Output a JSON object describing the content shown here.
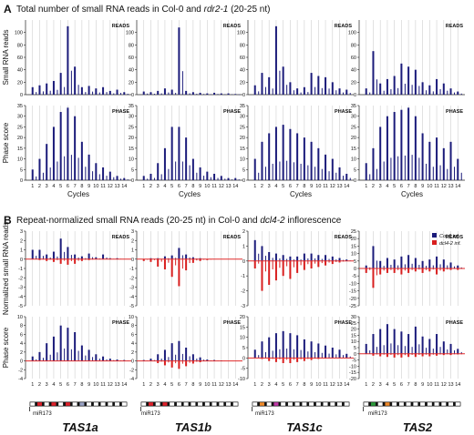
{
  "figure": {
    "panel_a": {
      "letter": "A",
      "title_pre": "Total number of small RNA reads in Col-0 and ",
      "title_em": "rdr2-1",
      "title_post": " (20-25 nt)"
    },
    "panel_b": {
      "letter": "B",
      "title_pre": "Repeat-normalized small RNA reads (20-25 nt) in Col-0 and ",
      "title_em": "dcl4-2",
      "title_post": " inflorescence"
    },
    "genes": [
      "TAS1a",
      "TAS1b",
      "TAS1c",
      "TAS2"
    ],
    "mir_label": "miR173",
    "legend": [
      {
        "label": "Col-0 inf.",
        "color": "#1b1b7a"
      },
      {
        "label": "dcl4-2 inf.",
        "color": "#d81e1e"
      }
    ]
  },
  "colors": {
    "col0": "#1b1b7a",
    "dcl4": "#d81e1e",
    "zero_line": "#e02a2a",
    "grid": "#cfcfcf",
    "tas1_segments": [
      "#e0202a",
      "#e0202a",
      "#e0202a",
      "#9aa3c6"
    ],
    "tas1b_segments": [
      "#e0202a",
      "#e0202a",
      "#ffffff"
    ],
    "tas1c_segments": [
      "#f08a2a",
      "#c23aa8"
    ],
    "tas2_segments": [
      "#2a9a3a",
      "#f08a2a"
    ]
  },
  "chart_data": [
    {
      "type": "bar",
      "panel": "A",
      "gene": "TAS1a",
      "metric": "READS",
      "ylabel": "Small RNA reads",
      "ylim": [
        0,
        120
      ],
      "yticks": [
        0,
        20,
        40,
        60,
        80,
        100
      ],
      "cycles": 14,
      "series": [
        {
          "x": [
            1,
            2,
            3,
            4,
            5,
            6,
            7,
            8,
            9,
            10,
            11,
            12,
            13,
            14
          ],
          "values": [
            12,
            15,
            18,
            22,
            35,
            110,
            45,
            12,
            14,
            10,
            12,
            6,
            8,
            4
          ]
        }
      ]
    },
    {
      "type": "bar",
      "panel": "A",
      "gene": "TAS1b",
      "metric": "READS",
      "ylim": [
        0,
        120
      ],
      "yticks": [
        0,
        20,
        40,
        60,
        80,
        100
      ],
      "cycles": 14,
      "series": [
        {
          "x": [
            1,
            2,
            3,
            4,
            5,
            6,
            7,
            8,
            9,
            10,
            11,
            12,
            13,
            14
          ],
          "values": [
            5,
            4,
            6,
            10,
            8,
            108,
            6,
            4,
            3,
            2,
            3,
            2,
            2,
            1
          ]
        }
      ]
    },
    {
      "type": "bar",
      "panel": "A",
      "gene": "TAS1c",
      "metric": "READS",
      "ylim": [
        0,
        120
      ],
      "yticks": [
        0,
        20,
        40,
        60,
        80,
        100
      ],
      "cycles": 14,
      "series": [
        {
          "x": [
            1,
            2,
            3,
            4,
            5,
            6,
            7,
            8,
            9,
            10,
            11,
            12,
            13,
            14
          ],
          "values": [
            15,
            35,
            28,
            110,
            45,
            20,
            10,
            12,
            35,
            30,
            28,
            20,
            10,
            8
          ]
        }
      ]
    },
    {
      "type": "bar",
      "panel": "A",
      "gene": "TAS2",
      "metric": "READS",
      "ylim": [
        0,
        120
      ],
      "yticks": [
        0,
        20,
        40,
        60,
        80,
        100
      ],
      "cycles": 14,
      "series": [
        {
          "x": [
            1,
            2,
            3,
            4,
            5,
            6,
            7,
            8,
            9,
            10,
            11,
            12,
            13,
            14
          ],
          "values": [
            10,
            70,
            18,
            25,
            30,
            50,
            45,
            40,
            20,
            15,
            25,
            18,
            10,
            5
          ]
        }
      ]
    },
    {
      "type": "bar",
      "panel": "A",
      "gene": "TAS1a",
      "metric": "PHASE",
      "ylabel": "Phase score",
      "xlabel": "Cycles",
      "ylim": [
        0,
        35
      ],
      "yticks": [
        0,
        5,
        10,
        15,
        20,
        25,
        30,
        35
      ],
      "cycles": 14,
      "series": [
        {
          "x": [
            1,
            2,
            3,
            4,
            5,
            6,
            7,
            8,
            9,
            10,
            11,
            12,
            13,
            14
          ],
          "values": [
            5,
            10,
            17,
            25,
            32,
            34,
            30,
            18,
            12,
            8,
            6,
            4,
            2,
            1
          ]
        }
      ]
    },
    {
      "type": "bar",
      "panel": "A",
      "gene": "TAS1b",
      "metric": "PHASE",
      "xlabel": "Cycles",
      "ylim": [
        0,
        35
      ],
      "yticks": [
        0,
        5,
        10,
        15,
        20,
        25,
        30,
        35
      ],
      "cycles": 14,
      "series": [
        {
          "x": [
            1,
            2,
            3,
            4,
            5,
            6,
            7,
            8,
            9,
            10,
            11,
            12,
            13,
            14
          ],
          "values": [
            2,
            3,
            8,
            15,
            25,
            25,
            20,
            10,
            6,
            4,
            3,
            2,
            1,
            1
          ]
        }
      ]
    },
    {
      "type": "bar",
      "panel": "A",
      "gene": "TAS1c",
      "metric": "PHASE",
      "xlabel": "Cycles",
      "ylim": [
        0,
        35
      ],
      "yticks": [
        0,
        5,
        10,
        15,
        20,
        25,
        30,
        35
      ],
      "cycles": 14,
      "series": [
        {
          "x": [
            1,
            2,
            3,
            4,
            5,
            6,
            7,
            8,
            9,
            10,
            11,
            12,
            13,
            14
          ],
          "values": [
            10,
            18,
            22,
            25,
            26,
            24,
            22,
            20,
            18,
            15,
            12,
            10,
            6,
            3
          ]
        }
      ]
    },
    {
      "type": "bar",
      "panel": "A",
      "gene": "TAS2",
      "metric": "PHASE",
      "xlabel": "Cycles",
      "ylim": [
        0,
        35
      ],
      "yticks": [
        0,
        5,
        10,
        15,
        20,
        25,
        30,
        35
      ],
      "cycles": 14,
      "series": [
        {
          "x": [
            1,
            2,
            3,
            4,
            5,
            6,
            7,
            8,
            9,
            10,
            11,
            12,
            13,
            14
          ],
          "values": [
            8,
            15,
            25,
            30,
            32,
            33,
            34,
            30,
            22,
            18,
            20,
            15,
            18,
            10
          ]
        }
      ]
    },
    {
      "type": "bar",
      "panel": "B",
      "gene": "TAS1a",
      "metric": "READS",
      "ylabel": "Normalized small RNA reads",
      "ylim": [
        -5,
        3
      ],
      "yticks": [
        -5,
        -4,
        -3,
        -2,
        -1,
        0,
        1,
        2,
        3
      ],
      "cycles": 14,
      "series": [
        {
          "name": "Col-0 inf.",
          "x": [
            1,
            2,
            3,
            4,
            5,
            6,
            7,
            8,
            9,
            10,
            11,
            12,
            13,
            14
          ],
          "values": [
            1.0,
            1.0,
            0.5,
            0.8,
            2.2,
            1.3,
            0.5,
            0.3,
            0.6,
            0.2,
            0.5,
            0.1,
            0.1,
            0.0
          ]
        },
        {
          "name": "dcl4-2 inf.",
          "x": [
            1,
            2,
            3,
            4,
            5,
            6,
            7,
            8,
            9,
            10,
            11,
            12,
            13,
            14
          ],
          "values": [
            0.0,
            -0.1,
            -0.2,
            -0.3,
            -0.5,
            -0.6,
            -0.5,
            -0.2,
            -0.1,
            0.0,
            0.0,
            0.0,
            0.0,
            0.0
          ]
        }
      ]
    },
    {
      "type": "bar",
      "panel": "B",
      "gene": "TAS1b",
      "metric": "READS",
      "ylim": [
        -5,
        3
      ],
      "yticks": [
        -5,
        -4,
        -3,
        -2,
        -1,
        0,
        1,
        2,
        3
      ],
      "cycles": 14,
      "series": [
        {
          "name": "Col-0 inf.",
          "x": [
            1,
            2,
            3,
            4,
            5,
            6,
            7,
            8,
            9,
            10,
            11,
            12,
            13,
            14
          ],
          "values": [
            0.0,
            0.1,
            0.1,
            0.3,
            0.4,
            1.2,
            0.5,
            0.2,
            0.1,
            0.0,
            0.0,
            0.0,
            0.0,
            0.0
          ]
        },
        {
          "name": "dcl4-2 inf.",
          "x": [
            1,
            2,
            3,
            4,
            5,
            6,
            7,
            8,
            9,
            10,
            11,
            12,
            13,
            14
          ],
          "values": [
            -0.2,
            -0.3,
            -0.8,
            -1.1,
            -1.9,
            -2.9,
            -1.2,
            -0.4,
            -0.2,
            -0.1,
            0.0,
            0.0,
            0.0,
            0.0
          ]
        }
      ]
    },
    {
      "type": "bar",
      "panel": "B",
      "gene": "TAS1c",
      "metric": "READS",
      "ylim": [
        -3,
        2
      ],
      "yticks": [
        -3,
        -2,
        -1,
        0,
        1,
        2
      ],
      "cycles": 14,
      "series": [
        {
          "name": "Col-0 inf.",
          "x": [
            1,
            2,
            3,
            4,
            5,
            6,
            7,
            8,
            9,
            10,
            11,
            12,
            13,
            14
          ],
          "values": [
            1.4,
            1.0,
            0.6,
            0.5,
            0.4,
            0.3,
            0.3,
            0.5,
            0.5,
            0.4,
            0.4,
            0.3,
            0.2,
            0.1
          ]
        },
        {
          "name": "dcl4-2 inf.",
          "x": [
            1,
            2,
            3,
            4,
            5,
            6,
            7,
            8,
            9,
            10,
            11,
            12,
            13,
            14
          ],
          "values": [
            -0.5,
            -2.0,
            -1.6,
            -1.3,
            -1.0,
            -1.2,
            -0.8,
            -0.6,
            -0.5,
            -0.4,
            -0.3,
            -0.2,
            -0.1,
            0.0
          ]
        }
      ]
    },
    {
      "type": "bar",
      "panel": "B",
      "gene": "TAS2",
      "metric": "READS",
      "ylim": [
        -25,
        25
      ],
      "yticks": [
        -25,
        -20,
        -15,
        -10,
        -5,
        0,
        5,
        10,
        15,
        20,
        25
      ],
      "cycles": 14,
      "series": [
        {
          "name": "Col-0 inf.",
          "x": [
            1,
            2,
            3,
            4,
            5,
            6,
            7,
            8,
            9,
            10,
            11,
            12,
            13,
            14
          ],
          "values": [
            2,
            15,
            5,
            7,
            6,
            8,
            9,
            7,
            5,
            6,
            8,
            6,
            4,
            2
          ]
        },
        {
          "name": "dcl4-2 inf.",
          "x": [
            1,
            2,
            3,
            4,
            5,
            6,
            7,
            8,
            9,
            10,
            11,
            12,
            13,
            14
          ],
          "values": [
            -3,
            -13,
            -4,
            -3,
            -3,
            -4,
            -3,
            -2,
            -3,
            -2,
            -4,
            -2,
            -1,
            -1
          ]
        }
      ]
    },
    {
      "type": "bar",
      "panel": "B",
      "gene": "TAS1a",
      "metric": "PHASE",
      "ylabel": "Phase score",
      "ylim": [
        -4,
        10
      ],
      "yticks": [
        -4,
        -2,
        0,
        2,
        4,
        6,
        8,
        10
      ],
      "cycles": 14,
      "series": [
        {
          "name": "Col-0 inf.",
          "x": [
            1,
            2,
            3,
            4,
            5,
            6,
            7,
            8,
            9,
            10,
            11,
            12,
            13,
            14
          ],
          "values": [
            1,
            2,
            4,
            5.5,
            8,
            7.5,
            6.5,
            3.5,
            2.5,
            1.5,
            1,
            0.5,
            0.3,
            0.2
          ]
        },
        {
          "name": "dcl4-2 inf.",
          "x": [
            1,
            2,
            3,
            4,
            5,
            6,
            7,
            8,
            9,
            10,
            11,
            12,
            13,
            14
          ],
          "values": [
            0,
            0,
            0,
            0,
            0,
            0,
            0,
            0,
            0,
            0,
            0,
            0,
            0,
            0
          ]
        }
      ]
    },
    {
      "type": "bar",
      "panel": "B",
      "gene": "TAS1b",
      "metric": "PHASE",
      "ylim": [
        -4,
        10
      ],
      "yticks": [
        -4,
        -2,
        0,
        2,
        4,
        6,
        8,
        10
      ],
      "cycles": 14,
      "series": [
        {
          "name": "Col-0 inf.",
          "x": [
            1,
            2,
            3,
            4,
            5,
            6,
            7,
            8,
            9,
            10,
            11,
            12,
            13,
            14
          ],
          "values": [
            0.2,
            0.5,
            1.5,
            2.5,
            4,
            4.5,
            3,
            1.5,
            0.8,
            0.3,
            0.2,
            0.1,
            0,
            0
          ]
        },
        {
          "name": "dcl4-2 inf.",
          "x": [
            1,
            2,
            3,
            4,
            5,
            6,
            7,
            8,
            9,
            10,
            11,
            12,
            13,
            14
          ],
          "values": [
            0,
            0,
            -0.5,
            -1,
            -1.5,
            -1.8,
            -1.2,
            -0.6,
            -0.3,
            0,
            0,
            0,
            0,
            0
          ]
        }
      ]
    },
    {
      "type": "bar",
      "panel": "B",
      "gene": "TAS1c",
      "metric": "PHASE",
      "ylim": [
        -10,
        20
      ],
      "yticks": [
        -10,
        -5,
        0,
        5,
        10,
        15,
        20
      ],
      "cycles": 14,
      "series": [
        {
          "name": "Col-0 inf.",
          "x": [
            1,
            2,
            3,
            4,
            5,
            6,
            7,
            8,
            9,
            10,
            11,
            12,
            13,
            14
          ],
          "values": [
            4,
            8,
            10,
            12,
            13,
            12,
            11,
            9,
            8,
            7,
            6,
            5,
            4,
            2
          ]
        },
        {
          "name": "dcl4-2 inf.",
          "x": [
            1,
            2,
            3,
            4,
            5,
            6,
            7,
            8,
            9,
            10,
            11,
            12,
            13,
            14
          ],
          "values": [
            0,
            -0.5,
            -1.5,
            -2,
            -2.5,
            -2.5,
            -2,
            -1.5,
            -1,
            -0.5,
            -0.3,
            0,
            0,
            0
          ]
        }
      ]
    },
    {
      "type": "bar",
      "panel": "B",
      "gene": "TAS2",
      "metric": "PHASE",
      "ylim": [
        -20,
        30
      ],
      "yticks": [
        -20,
        -15,
        -10,
        -5,
        0,
        5,
        10,
        15,
        20,
        25,
        30
      ],
      "cycles": 14,
      "series": [
        {
          "name": "Col-0 inf.",
          "x": [
            1,
            2,
            3,
            4,
            5,
            6,
            7,
            8,
            9,
            10,
            11,
            12,
            13,
            14
          ],
          "values": [
            8,
            16,
            20,
            24,
            20,
            18,
            16,
            22,
            14,
            12,
            16,
            10,
            8,
            4
          ]
        },
        {
          "name": "dcl4-2 inf.",
          "x": [
            1,
            2,
            3,
            4,
            5,
            6,
            7,
            8,
            9,
            10,
            11,
            12,
            13,
            14
          ],
          "values": [
            0,
            -1.5,
            -2,
            -2.5,
            -3,
            -3,
            -2.5,
            -2.5,
            -2,
            -2,
            -1.5,
            -1,
            -1,
            -0.5
          ]
        }
      ]
    }
  ]
}
